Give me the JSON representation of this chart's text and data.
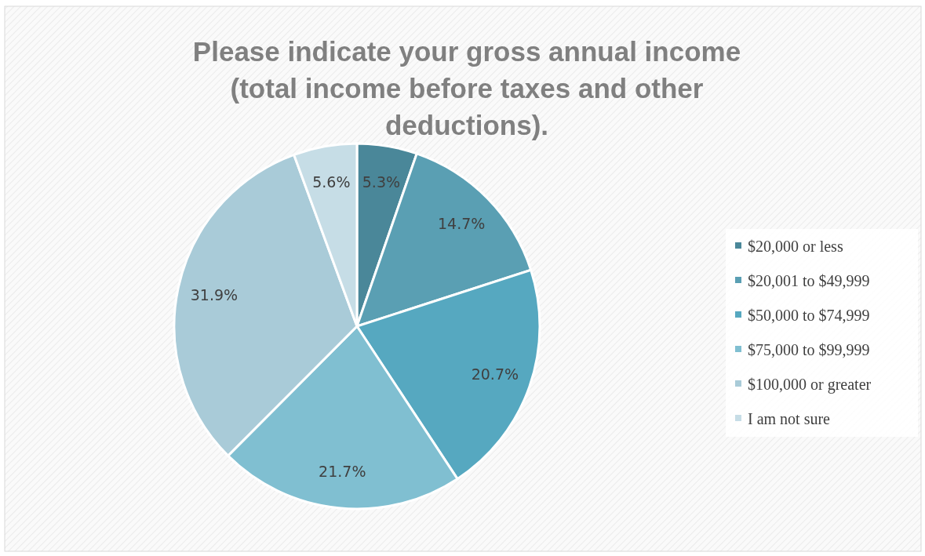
{
  "chart_data": {
    "type": "pie",
    "title": "Please indicate your gross annual income (total income before taxes and other deductions).",
    "categories": [
      "$20,000 or less",
      "$20,001 to $49,999",
      "$50,000 to $74,999",
      "$75,000 to $99,999",
      "$100,000 or greater",
      "I am not sure"
    ],
    "values": [
      5.3,
      14.7,
      20.7,
      21.7,
      31.9,
      5.6
    ],
    "value_labels": [
      "5.3%",
      "14.7%",
      "20.7%",
      "21.7%",
      "31.9%",
      "5.6%"
    ],
    "colors": [
      "#4a8799",
      "#5a9fb3",
      "#56a8c0",
      "#80bfd1",
      "#a9cbd8",
      "#c6dde6"
    ],
    "legend": "right"
  }
}
